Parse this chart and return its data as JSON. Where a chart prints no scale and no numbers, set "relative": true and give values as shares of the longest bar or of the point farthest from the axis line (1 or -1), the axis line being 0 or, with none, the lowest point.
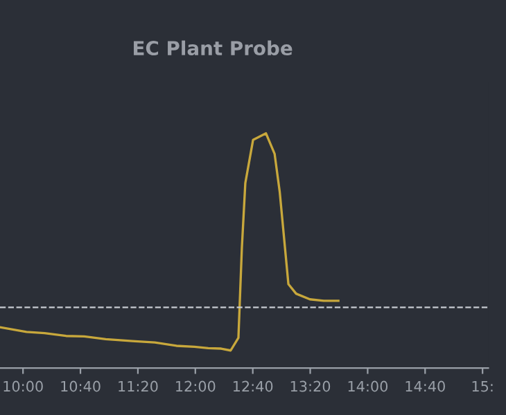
{
  "chart_data": {
    "type": "line",
    "title": "EC Plant Probe",
    "relative": true,
    "x": [
      9.733,
      10.04,
      10.25,
      10.5,
      10.71,
      10.96,
      11.27,
      11.53,
      11.78,
      11.99,
      12.15,
      12.3,
      12.41,
      12.5,
      12.54,
      12.58,
      12.67,
      12.82,
      12.92,
      12.98,
      13.08,
      13.17,
      13.33,
      13.49,
      13.66
    ],
    "series": [
      {
        "color": "#c8a83c",
        "values": [
          0.174,
          0.154,
          0.149,
          0.137,
          0.135,
          0.123,
          0.115,
          0.109,
          0.095,
          0.091,
          0.085,
          0.083,
          0.075,
          0.129,
          0.511,
          0.788,
          0.972,
          1.0,
          0.913,
          0.749,
          0.358,
          0.317,
          0.293,
          0.287,
          0.287
        ]
      }
    ],
    "xlim": [
      9.733,
      15.4
    ],
    "xticks": [
      {
        "value": 10,
        "label": "10:00"
      },
      {
        "value": 10.6667,
        "label": "10:40"
      },
      {
        "value": 11.3333,
        "label": "11:20"
      },
      {
        "value": 12,
        "label": "12:00"
      },
      {
        "value": 12.6667,
        "label": "12:40"
      },
      {
        "value": 13.3333,
        "label": "13:20"
      },
      {
        "value": 14,
        "label": "14:00"
      },
      {
        "value": 14.6667,
        "label": "14:40"
      },
      {
        "value": 15.3333,
        "label": "15:"
      }
    ],
    "ref_lines": [
      {
        "axis": "y",
        "value": 0.259,
        "label": null,
        "color": "#c8ccd2",
        "line_style": "dashed"
      }
    ],
    "grid": false,
    "legend": false,
    "marker": "none",
    "line_style": "solid"
  }
}
